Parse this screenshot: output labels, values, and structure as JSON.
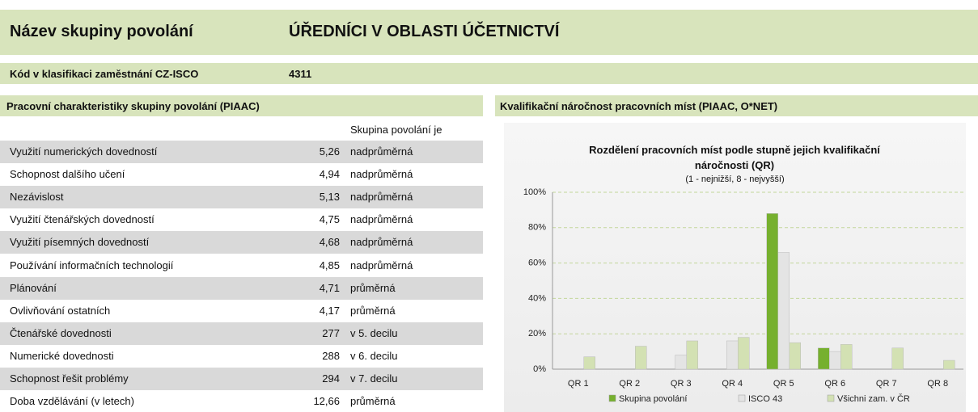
{
  "header": {
    "label": "Název skupiny povolání",
    "value": "ÚŘEDNÍCI V OBLASTI ÚČETNICTVÍ"
  },
  "code": {
    "label": "Kód v klasifikaci zaměstnání CZ-ISCO",
    "value": "4311"
  },
  "table": {
    "title": "Pracovní charakteristiky skupiny povolání (PIAAC)",
    "column_header": "Skupina povolání je",
    "rows": [
      [
        "Využití numerických dovedností",
        "5,26",
        "nadprůměrná"
      ],
      [
        "Schopnost dalšího učení",
        "4,94",
        "nadprůměrná"
      ],
      [
        "Nezávislost",
        "5,13",
        "nadprůměrná"
      ],
      [
        "Využití čtenářských dovedností",
        "4,75",
        "nadprůměrná"
      ],
      [
        "Využití písemných dovedností",
        "4,68",
        "nadprůměrná"
      ],
      [
        "Používání informačních technologií",
        "4,85",
        "nadprůměrná"
      ],
      [
        "Plánování",
        "4,71",
        "průměrná"
      ],
      [
        "Ovlivňování ostatních",
        "4,17",
        "průměrná"
      ],
      [
        "Čtenářské dovednosti",
        "277",
        "v 5. decilu"
      ],
      [
        "Numerické dovednosti",
        "288",
        "v 6. decilu"
      ],
      [
        "Schopnost řešit problémy",
        "294",
        "v 7. decilu"
      ],
      [
        "Doba vzdělávání (v letech)",
        "12,66",
        "průměrná"
      ]
    ]
  },
  "chart_section": {
    "title": "Kvalifikační náročnost pracovních míst (PIAAC, O*NET)"
  },
  "chart": {
    "type": "bar",
    "title": "Rozdělení pracovních míst podle stupně jejich kvalifikační náročnosti (QR)",
    "subtitle": "(1 - nejnižší, 8 - nejvyšší)",
    "categories": [
      "QR 1",
      "QR 2",
      "QR 3",
      "QR 4",
      "QR 5",
      "QR 6",
      "QR 7",
      "QR 8"
    ],
    "series": [
      {
        "name": "Skupina povolání",
        "color": "#76b02e",
        "values": [
          0,
          0,
          0,
          0,
          88,
          12,
          0,
          0
        ]
      },
      {
        "name": "ISCO 43",
        "color": "#e4e4e4",
        "values": [
          0,
          0,
          8,
          16,
          66,
          10,
          0,
          0
        ]
      },
      {
        "name": "Všichni zam. v ČR",
        "color": "#d3e1b3",
        "values": [
          7,
          13,
          16,
          18,
          15,
          14,
          12,
          5
        ]
      }
    ],
    "ylim": [
      0,
      100
    ],
    "yticks": [
      {
        "value": 0,
        "label": "0%"
      },
      {
        "value": 20,
        "label": "20%"
      },
      {
        "value": 40,
        "label": "40%"
      },
      {
        "value": 60,
        "label": "60%"
      },
      {
        "value": 80,
        "label": "80%"
      },
      {
        "value": 100,
        "label": "100%"
      }
    ],
    "grid": true
  }
}
